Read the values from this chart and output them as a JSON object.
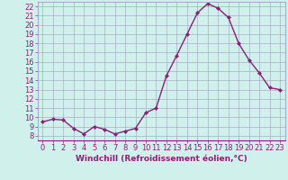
{
  "x": [
    0,
    1,
    2,
    3,
    4,
    5,
    6,
    7,
    8,
    9,
    10,
    11,
    12,
    13,
    14,
    15,
    16,
    17,
    18,
    19,
    20,
    21,
    22,
    23
  ],
  "y": [
    9.5,
    9.8,
    9.7,
    8.8,
    8.2,
    9.0,
    8.7,
    8.2,
    8.5,
    8.8,
    10.5,
    11.0,
    14.5,
    16.7,
    19.0,
    21.3,
    22.3,
    21.8,
    20.8,
    18.0,
    16.2,
    14.8,
    13.2,
    13.0
  ],
  "line_color": "#882277",
  "marker": "D",
  "marker_size": 2,
  "xlabel": "Windchill (Refroidissement éolien,°C)",
  "xlim": [
    -0.5,
    23.5
  ],
  "ylim": [
    7.5,
    22.5
  ],
  "yticks": [
    8,
    9,
    10,
    11,
    12,
    13,
    14,
    15,
    16,
    17,
    18,
    19,
    20,
    21,
    22
  ],
  "xticks": [
    0,
    1,
    2,
    3,
    4,
    5,
    6,
    7,
    8,
    9,
    10,
    11,
    12,
    13,
    14,
    15,
    16,
    17,
    18,
    19,
    20,
    21,
    22,
    23
  ],
  "background_color": "#d0f0ec",
  "grid_color": "#aaaacc",
  "line_width": 1.0,
  "tick_color": "#882277",
  "label_color": "#882277",
  "tick_fontsize": 6.0,
  "xlabel_fontsize": 6.5
}
